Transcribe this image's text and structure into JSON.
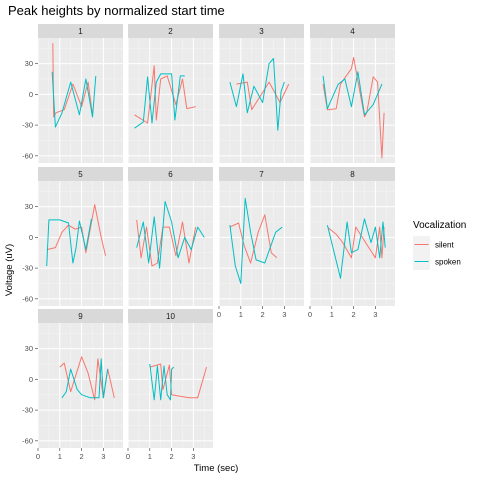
{
  "chart_data": {
    "type": "line",
    "title": "Peak heights by normalized start time",
    "xlabel": "Time (sec)",
    "ylabel": "Voltage (uV)",
    "xlim": [
      0,
      3.9
    ],
    "ylim": [
      -67,
      55
    ],
    "x_ticks": [
      0,
      1,
      2,
      3
    ],
    "y_ticks": [
      -60,
      -30,
      0,
      30
    ],
    "legend": {
      "title": "Vocalization",
      "position": "right",
      "entries": [
        {
          "label": "silent",
          "color": "#F8766D"
        },
        {
          "label": "spoken",
          "color": "#00BFC4"
        }
      ]
    },
    "grid": true,
    "facets": [
      {
        "label": "1",
        "series": [
          {
            "name": "silent",
            "x": [
              0.68,
              0.72,
              0.82,
              1.2,
              1.6,
              2.0,
              2.3,
              2.5
            ],
            "y": [
              50,
              -22,
              -18,
              -15,
              10,
              -12,
              12,
              -20
            ]
          },
          {
            "name": "spoken",
            "x": [
              0.65,
              0.8,
              1.1,
              1.5,
              1.9,
              2.2,
              2.5,
              2.65
            ],
            "y": [
              22,
              -32,
              -18,
              12,
              -20,
              15,
              -22,
              18
            ]
          }
        ]
      },
      {
        "label": "2",
        "series": [
          {
            "name": "silent",
            "x": [
              0.3,
              0.9,
              1.2,
              1.3,
              1.5,
              1.8,
              2.2,
              2.5,
              2.7,
              3.1
            ],
            "y": [
              -20,
              -28,
              28,
              -25,
              15,
              18,
              -10,
              15,
              -14,
              -12
            ]
          },
          {
            "name": "spoken",
            "x": [
              0.3,
              0.7,
              0.9,
              1.1,
              1.3,
              1.5,
              2.0,
              2.15,
              2.4,
              2.6
            ],
            "y": [
              -33,
              -27,
              17,
              -28,
              12,
              20,
              20,
              -25,
              18,
              18
            ]
          }
        ]
      },
      {
        "label": "3",
        "series": [
          {
            "name": "silent",
            "x": [
              0.8,
              1.3,
              1.5,
              2.3,
              2.8,
              3.2
            ],
            "y": [
              10,
              12,
              -15,
              12,
              -8,
              10
            ]
          },
          {
            "name": "spoken",
            "x": [
              0.5,
              0.8,
              1.1,
              1.3,
              1.6,
              2.0,
              2.3,
              2.5,
              2.7,
              2.85,
              3.0
            ],
            "y": [
              12,
              -12,
              20,
              -18,
              8,
              -8,
              30,
              35,
              -35,
              3,
              12
            ]
          }
        ]
      },
      {
        "label": "4",
        "series": [
          {
            "name": "silent",
            "x": [
              0.6,
              0.8,
              1.2,
              1.4,
              1.9,
              2.0,
              2.5,
              2.6,
              2.9,
              3.1,
              3.3,
              3.4
            ],
            "y": [
              10,
              -15,
              -14,
              10,
              25,
              36,
              -22,
              -18,
              17,
              12,
              -62,
              -18
            ]
          },
          {
            "name": "spoken",
            "x": [
              0.6,
              0.8,
              1.3,
              1.6,
              1.9,
              2.2,
              2.5,
              2.9,
              3.3
            ],
            "y": [
              18,
              -14,
              10,
              15,
              -12,
              22,
              -20,
              -10,
              10
            ]
          }
        ]
      },
      {
        "label": "5",
        "series": [
          {
            "name": "silent",
            "x": [
              0.4,
              0.8,
              1.1,
              1.4,
              1.7,
              2.0,
              2.2,
              2.6,
              2.9,
              3.1
            ],
            "y": [
              -12,
              -10,
              5,
              12,
              8,
              10,
              -15,
              32,
              0,
              -18
            ]
          },
          {
            "name": "spoken",
            "x": [
              0.4,
              0.5,
              1.0,
              1.4,
              1.6,
              1.75,
              1.9,
              2.2,
              2.45
            ],
            "y": [
              -28,
              17,
              17,
              14,
              -25,
              -10,
              16,
              -12,
              18
            ]
          }
        ]
      },
      {
        "label": "6",
        "series": [
          {
            "name": "silent",
            "x": [
              0.4,
              0.6,
              0.85,
              1.1,
              1.35,
              1.6,
              1.9,
              2.2,
              2.5,
              2.8,
              3.1
            ],
            "y": [
              17,
              -20,
              10,
              -28,
              -25,
              10,
              10,
              -18,
              15,
              -25,
              10
            ]
          },
          {
            "name": "spoken",
            "x": [
              0.4,
              0.7,
              0.95,
              1.2,
              1.45,
              1.7,
              2.0,
              2.3,
              2.6,
              2.9,
              3.2,
              3.5
            ],
            "y": [
              -10,
              15,
              -25,
              20,
              -30,
              35,
              15,
              -20,
              0,
              -12,
              10,
              0
            ]
          }
        ]
      },
      {
        "label": "7",
        "series": [
          {
            "name": "silent",
            "x": [
              0.5,
              0.9,
              1.15,
              1.45,
              1.8,
              2.1,
              2.4,
              2.65
            ],
            "y": [
              10,
              14,
              -8,
              -25,
              5,
              22,
              -15,
              -20
            ]
          },
          {
            "name": "spoken",
            "x": [
              0.5,
              0.75,
              1.0,
              1.2,
              1.45,
              1.7,
              2.1,
              2.35,
              2.6,
              2.9
            ],
            "y": [
              12,
              -28,
              -45,
              38,
              5,
              -22,
              -25,
              -10,
              5,
              10
            ]
          }
        ]
      },
      {
        "label": "8",
        "series": [
          {
            "name": "silent",
            "x": [
              0.8,
              1.2,
              1.5,
              1.9,
              2.1,
              2.4,
              2.7,
              3.0,
              3.2,
              3.3,
              3.4
            ],
            "y": [
              10,
              3,
              -5,
              -20,
              10,
              0,
              -10,
              -20,
              10,
              -20,
              10
            ]
          },
          {
            "name": "spoken",
            "x": [
              0.8,
              1.4,
              1.7,
              1.9,
              2.2,
              2.5,
              2.8,
              3.0,
              3.2,
              3.35,
              3.45
            ],
            "y": [
              12,
              -40,
              15,
              -15,
              -12,
              18,
              -5,
              10,
              -20,
              15,
              -10
            ]
          }
        ]
      },
      {
        "label": "9",
        "series": [
          {
            "name": "silent",
            "x": [
              1.0,
              1.2,
              1.5,
              2.0,
              2.3,
              2.6,
              2.75,
              3.0,
              3.2,
              3.5
            ],
            "y": [
              12,
              16,
              -12,
              22,
              6,
              -20,
              20,
              -18,
              10,
              -18
            ]
          },
          {
            "name": "spoken",
            "x": [
              1.1,
              1.3,
              1.5,
              1.8,
              2.0,
              2.4,
              2.8,
              2.9,
              3.0,
              3.2
            ],
            "y": [
              -18,
              -12,
              10,
              -10,
              -15,
              -18,
              -18,
              20,
              -18,
              10
            ]
          }
        ]
      },
      {
        "label": "10",
        "series": [
          {
            "name": "silent",
            "x": [
              1.0,
              1.5,
              1.6,
              1.9,
              2.0,
              2.8,
              3.2,
              3.6
            ],
            "y": [
              12,
              15,
              -10,
              14,
              -15,
              -18,
              -18,
              12
            ]
          },
          {
            "name": "spoken",
            "x": [
              1.0,
              1.2,
              1.35,
              1.5,
              1.65,
              1.8,
              1.95,
              2.0,
              2.1
            ],
            "y": [
              15,
              -20,
              13,
              -20,
              13,
              -15,
              -20,
              10,
              12
            ]
          }
        ]
      }
    ]
  }
}
